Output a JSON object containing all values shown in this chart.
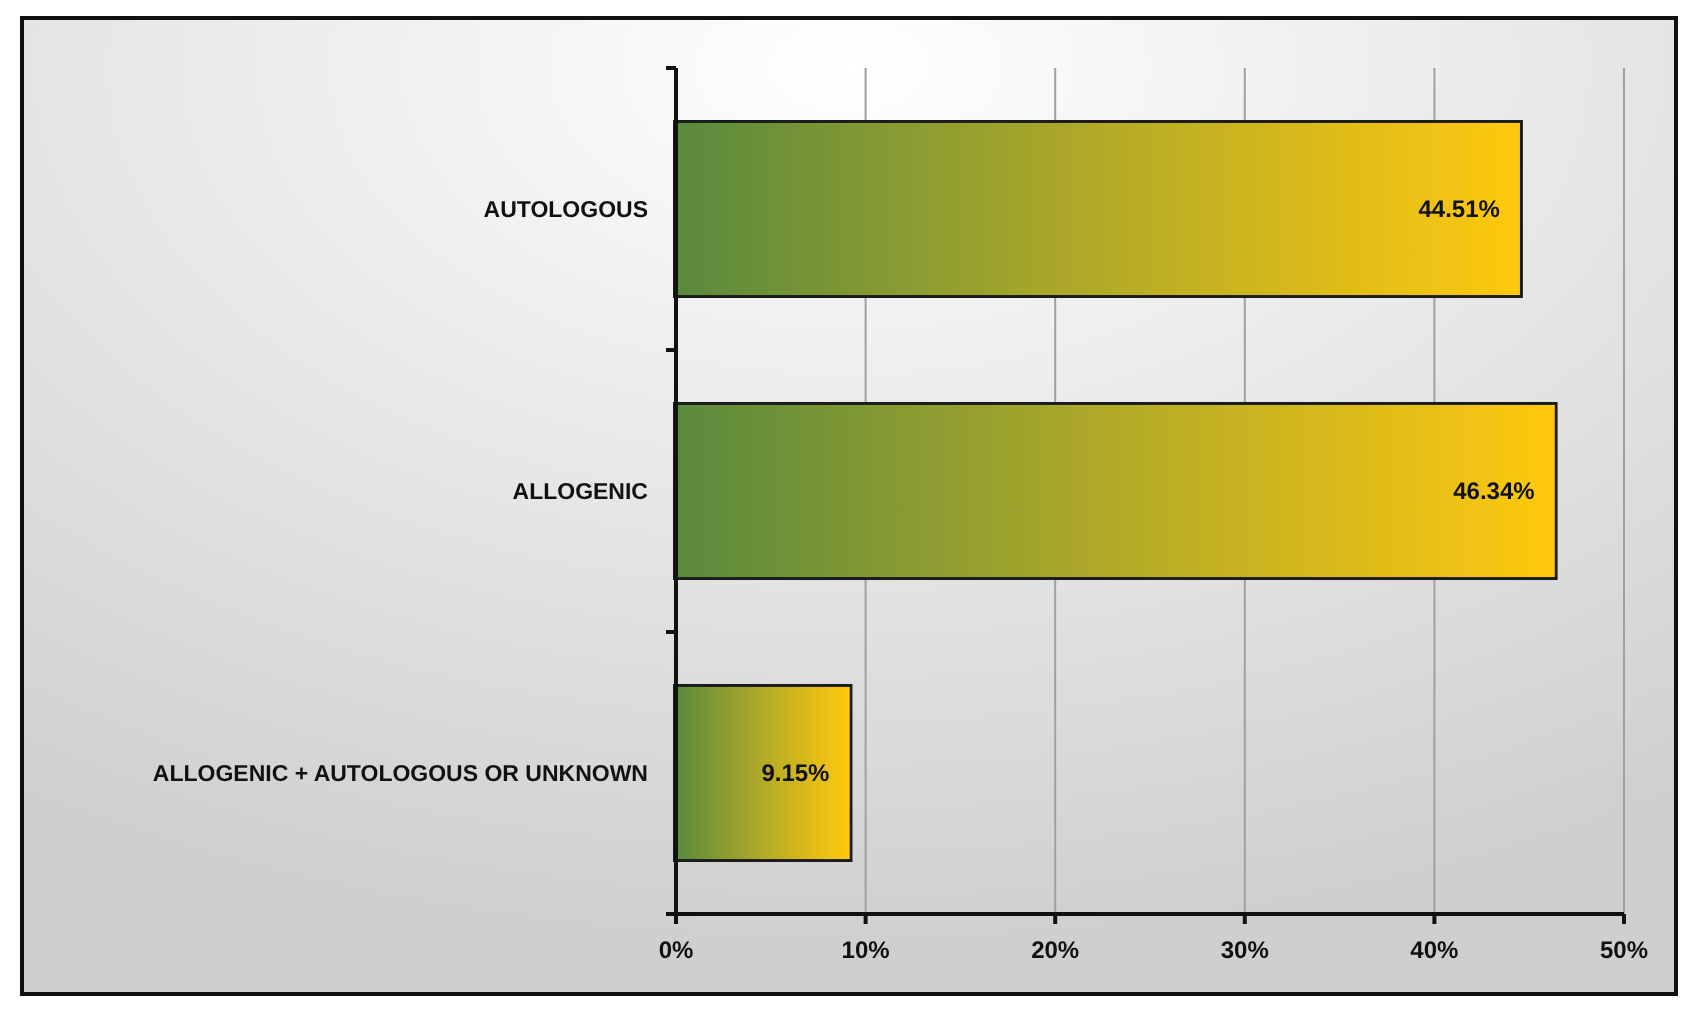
{
  "chart_data": {
    "type": "bar",
    "orientation": "horizontal",
    "categories": [
      "AUTOLOGOUS",
      "ALLOGENIC",
      "ALLOGENIC + AUTOLOGOUS OR UNKNOWN"
    ],
    "values": [
      44.51,
      46.34,
      9.15
    ],
    "color": "#b2aa28",
    "value_labels": [
      "44.51%",
      "46.34%",
      "9.15%"
    ],
    "xlim": [
      0,
      50
    ],
    "xticks": [
      {
        "value": 0,
        "label": "0%"
      },
      {
        "value": 10,
        "label": "10%"
      },
      {
        "value": 20,
        "label": "20%"
      },
      {
        "value": 30,
        "label": "30%"
      },
      {
        "value": 40,
        "label": "40%"
      },
      {
        "value": 50,
        "label": "50%"
      }
    ],
    "grid": "x"
  }
}
